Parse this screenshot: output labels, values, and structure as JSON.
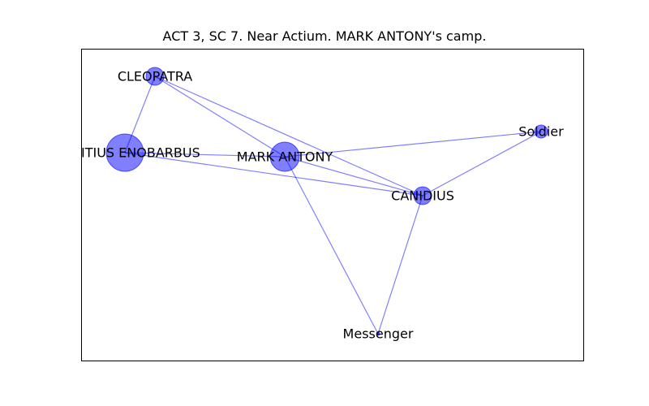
{
  "title": "ACT 3, SC 7. Near Actium. MARK ANTONY's camp.",
  "colors": {
    "node": "#0000ff",
    "edge": "#0000ff",
    "label": "#000000"
  },
  "graph": {
    "nodes": [
      {
        "id": "cleopatra",
        "label": "CLEOPATRA",
        "size": "small"
      },
      {
        "id": "enobarbus",
        "label": "DOMITIUS ENOBARBUS",
        "size": "large"
      },
      {
        "id": "antony",
        "label": "MARK ANTONY",
        "size": "medium"
      },
      {
        "id": "soldier",
        "label": "Soldier",
        "size": "tiny"
      },
      {
        "id": "canidius",
        "label": "CANIDIUS",
        "size": "small"
      },
      {
        "id": "messenger",
        "label": "Messenger",
        "size": "point"
      }
    ],
    "edges": [
      [
        "cleopatra",
        "enobarbus"
      ],
      [
        "cleopatra",
        "antony"
      ],
      [
        "cleopatra",
        "canidius"
      ],
      [
        "enobarbus",
        "antony"
      ],
      [
        "enobarbus",
        "canidius"
      ],
      [
        "antony",
        "soldier"
      ],
      [
        "antony",
        "canidius"
      ],
      [
        "antony",
        "messenger"
      ],
      [
        "soldier",
        "canidius"
      ],
      [
        "canidius",
        "messenger"
      ]
    ]
  }
}
